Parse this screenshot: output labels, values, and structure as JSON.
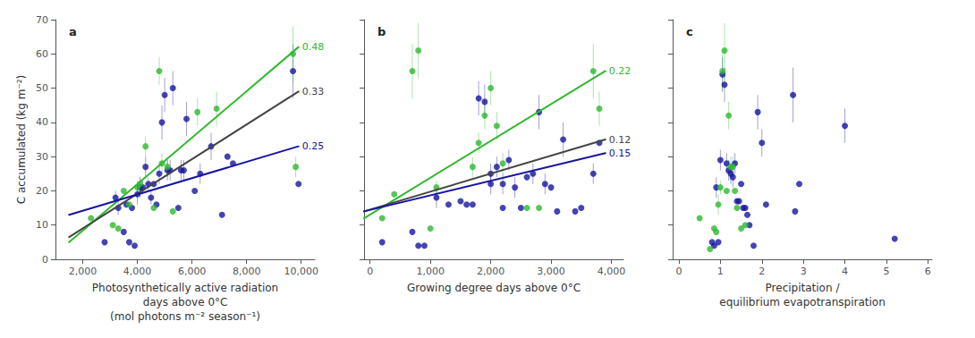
{
  "chart_data": [
    {
      "type": "scatter",
      "title": "a",
      "xlabel": "Photosynthetically active radiation\ndays above 0°C\n(mol photons m⁻² season⁻¹)",
      "ylabel": "C accumulated (kg m⁻²)",
      "xlim": [
        1000,
        10500
      ],
      "xticks": [
        {
          "value": 2000,
          "label": "2,000"
        },
        {
          "value": 4000,
          "label": "4,000"
        },
        {
          "value": 6000,
          "label": "6,000"
        },
        {
          "value": 8000,
          "label": "8,000"
        },
        {
          "value": 10000,
          "label": "10,000"
        }
      ],
      "ylim": [
        0,
        70
      ],
      "yticks": [
        0,
        10,
        20,
        30,
        40,
        50,
        60,
        70
      ],
      "grid": false,
      "series": [
        {
          "type": "scatter",
          "color": "#1515a0",
          "x": [
            2800,
            3200,
            3300,
            3500,
            3600,
            3700,
            3800,
            3900,
            4000,
            4100,
            4200,
            4300,
            4400,
            4500,
            4600,
            4700,
            4800,
            4900,
            5000,
            5100,
            5200,
            5300,
            5500,
            5600,
            5700,
            5800,
            6100,
            6300,
            6700,
            7100,
            7300,
            7500,
            9700,
            9900
          ],
          "values": [
            5,
            18,
            15,
            8,
            16,
            5,
            15,
            4,
            19,
            21,
            21,
            27,
            22,
            18,
            22,
            16,
            25,
            40,
            48,
            26,
            26,
            50,
            15,
            26,
            26,
            41,
            20,
            25,
            33,
            13,
            30,
            28,
            55,
            22
          ],
          "errors": [
            0,
            2,
            2,
            0,
            0,
            0,
            0,
            0,
            3,
            3,
            2,
            3,
            2,
            2,
            0,
            0,
            3,
            5,
            5,
            3,
            3,
            5,
            0,
            3,
            3,
            5,
            0,
            3,
            4,
            0,
            0,
            0,
            8,
            0
          ]
        },
        {
          "type": "scatter",
          "color": "#2eb82e",
          "x": [
            2300,
            3100,
            3300,
            3500,
            3700,
            4000,
            4100,
            4300,
            4600,
            4800,
            4900,
            5100,
            5300,
            6200,
            6900,
            9700,
            9800
          ],
          "values": [
            12,
            10,
            9,
            20,
            16,
            21,
            22,
            33,
            15,
            55,
            28,
            27,
            14,
            43,
            44,
            60,
            27
          ],
          "errors": [
            0,
            0,
            0,
            0,
            0,
            2,
            2,
            3,
            0,
            4,
            3,
            3,
            0,
            4,
            5,
            8,
            3
          ]
        },
        {
          "type": "line",
          "color": "#2eb82e",
          "x": [
            1500,
            9900
          ],
          "values": [
            5.0,
            62.0
          ],
          "annotation": "0.48"
        },
        {
          "type": "line",
          "color": "#444444",
          "x": [
            1500,
            9900
          ],
          "values": [
            6.5,
            49.0
          ],
          "annotation": "0.33"
        },
        {
          "type": "line",
          "color": "#1515a0",
          "x": [
            1500,
            9900
          ],
          "values": [
            13.0,
            33.0
          ],
          "annotation": "0.25"
        }
      ]
    },
    {
      "type": "scatter",
      "title": "b",
      "xlabel": "Growing degree days above 0°C",
      "xlim": [
        -100,
        4200
      ],
      "xticks": [
        0,
        {
          "value": 1000,
          "label": "1,000"
        },
        {
          "value": 2000,
          "label": "2,000"
        },
        {
          "value": 3000,
          "label": "3,000"
        },
        {
          "value": 4000,
          "label": "4,000"
        }
      ],
      "ylim": [
        0,
        70
      ],
      "yticks": [
        0,
        10,
        20,
        30,
        40,
        50,
        60,
        70
      ],
      "tick_labels": "x",
      "grid": false,
      "series": [
        {
          "type": "scatter",
          "color": "#1515a0",
          "x": [
            200,
            700,
            800,
            900,
            1100,
            1300,
            1500,
            1600,
            1700,
            1800,
            1900,
            2000,
            2000,
            2100,
            2200,
            2200,
            2300,
            2400,
            2500,
            2600,
            2700,
            2800,
            2900,
            3000,
            3100,
            3200,
            3400,
            3500,
            3700,
            3800
          ],
          "values": [
            5,
            8,
            4,
            4,
            18,
            16,
            17,
            16,
            16,
            47,
            46,
            22,
            25,
            27,
            22,
            15,
            29,
            21,
            15,
            24,
            25,
            43,
            22,
            21,
            14,
            35,
            14,
            15,
            25,
            34
          ],
          "errors": [
            0,
            0,
            0,
            0,
            3,
            0,
            0,
            0,
            0,
            5,
            5,
            3,
            3,
            3,
            3,
            0,
            3,
            3,
            0,
            0,
            3,
            5,
            3,
            0,
            0,
            5,
            0,
            0,
            3,
            0
          ]
        },
        {
          "type": "scatter",
          "color": "#2eb82e",
          "x": [
            200,
            400,
            700,
            800,
            1000,
            1100,
            1700,
            1800,
            1900,
            2000,
            2100,
            2200,
            2600,
            2800,
            3700,
            3800
          ],
          "values": [
            12,
            19,
            55,
            61,
            9,
            21,
            27,
            34,
            42,
            50,
            39,
            28,
            15,
            15,
            55,
            44
          ],
          "errors": [
            0,
            0,
            8,
            8,
            0,
            2,
            3,
            3,
            4,
            5,
            4,
            3,
            0,
            0,
            8,
            5
          ]
        },
        {
          "type": "line",
          "color": "#2eb82e",
          "x": [
            -100,
            3900
          ],
          "values": [
            12.0,
            55.0
          ],
          "annotation": "0.22"
        },
        {
          "type": "line",
          "color": "#444444",
          "x": [
            -100,
            3900
          ],
          "values": [
            14.0,
            35.0
          ],
          "annotation": "0.12"
        },
        {
          "type": "line",
          "color": "#1515a0",
          "x": [
            -100,
            3900
          ],
          "values": [
            14.0,
            31.0
          ],
          "annotation": "0.15"
        }
      ]
    },
    {
      "type": "scatter",
      "title": "c",
      "xlabel": "Precipitation /\nequilibrium evapotranspiration",
      "xlim": [
        -0.15,
        6.1
      ],
      "xticks": [
        0,
        1,
        2,
        3,
        4,
        5,
        6
      ],
      "ylim": [
        0,
        70
      ],
      "yticks": [
        0,
        10,
        20,
        30,
        40,
        50,
        60,
        70
      ],
      "tick_labels": "x",
      "grid": false,
      "series": [
        {
          "type": "scatter",
          "color": "#1515a0",
          "x": [
            0.8,
            0.85,
            0.9,
            0.95,
            1.0,
            1.05,
            1.1,
            1.15,
            1.2,
            1.25,
            1.3,
            1.35,
            1.4,
            1.45,
            1.5,
            1.55,
            1.6,
            1.65,
            1.7,
            1.8,
            1.9,
            2.0,
            2.1,
            2.75,
            2.8,
            2.9,
            4.0,
            5.2
          ],
          "values": [
            5,
            4,
            21,
            5,
            29,
            54,
            51,
            28,
            26,
            25,
            24,
            28,
            17,
            17,
            22,
            15,
            15,
            13,
            10,
            4,
            43,
            34,
            16,
            48,
            14,
            22,
            39,
            6
          ],
          "errors": [
            0,
            0,
            3,
            0,
            3,
            5,
            5,
            3,
            3,
            3,
            3,
            3,
            0,
            0,
            0,
            0,
            0,
            0,
            0,
            0,
            5,
            4,
            0,
            8,
            0,
            0,
            5,
            0
          ]
        },
        {
          "type": "scatter",
          "color": "#2eb82e",
          "x": [
            0.5,
            0.75,
            0.85,
            0.9,
            0.95,
            1.0,
            1.05,
            1.1,
            1.15,
            1.2,
            1.25,
            1.3,
            1.35,
            1.4,
            1.5,
            1.6
          ],
          "values": [
            12,
            3,
            9,
            8,
            16,
            21,
            55,
            61,
            20,
            42,
            27,
            27,
            20,
            15,
            9,
            10
          ],
          "errors": [
            0,
            0,
            0,
            0,
            3,
            2,
            6,
            8,
            0,
            4,
            3,
            3,
            0,
            0,
            0,
            0
          ]
        }
      ]
    }
  ]
}
